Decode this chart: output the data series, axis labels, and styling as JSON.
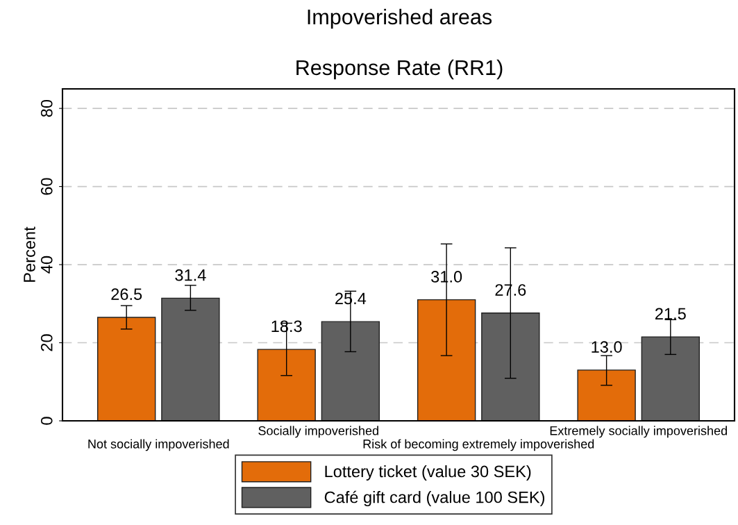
{
  "chart_data": {
    "type": "bar",
    "title": "Impoverished areas",
    "subtitle": "Response Rate (RR1)",
    "ylabel": "Percent",
    "categories": [
      "Not socially impoverished",
      "Socially impoverished",
      "Risk of becoming extremely impoverished",
      "Extremely socially impoverished"
    ],
    "series": [
      {
        "name": "Lottery ticket (value 30 SEK)",
        "color": "#e36c0a",
        "values": [
          26.5,
          18.3,
          31.0,
          13.0
        ],
        "value_labels": [
          "26.5",
          "18.3",
          "31.0",
          "13.0"
        ],
        "errors": [
          [
            23.5,
            29.5
          ],
          [
            11.6,
            25.0
          ],
          [
            16.7,
            45.3
          ],
          [
            9.1,
            16.7
          ]
        ]
      },
      {
        "name": "Café gift card (value 100 SEK)",
        "color": "#606060",
        "values": [
          31.4,
          25.4,
          27.6,
          21.5
        ],
        "value_labels": [
          "31.4",
          "25.4",
          "27.6",
          "21.5"
        ],
        "errors": [
          [
            28.3,
            34.7
          ],
          [
            17.7,
            33.2
          ],
          [
            10.9,
            44.3
          ],
          [
            17.0,
            25.9
          ]
        ]
      }
    ],
    "ylim": [
      0,
      85
    ],
    "yticks": [
      0,
      20,
      40,
      60,
      80
    ],
    "grid": "y",
    "legend": "bottom"
  }
}
